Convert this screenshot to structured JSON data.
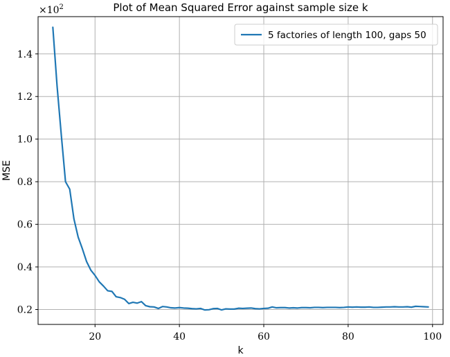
{
  "chart_data": {
    "type": "line",
    "title": "Plot of Mean Squared Error against sample size k",
    "xlabel": "k",
    "ylabel": "MSE",
    "y_offset_label": "×10",
    "y_offset_exponent": "2",
    "xlim": [
      6.5,
      102.5
    ],
    "ylim": [
      0.13,
      1.575
    ],
    "x_ticks": [
      20,
      40,
      60,
      80,
      100
    ],
    "x_tick_labels": [
      "20",
      "40",
      "60",
      "80",
      "100"
    ],
    "y_ticks": [
      0.2,
      0.4,
      0.6,
      0.8,
      1.0,
      1.2,
      1.4
    ],
    "y_tick_labels": [
      "0.2",
      "0.4",
      "0.6",
      "0.8",
      "1.0",
      "1.2",
      "1.4"
    ],
    "grid": true,
    "legend_position": "top-right",
    "series_color": "#1f77b4",
    "series": [
      {
        "name": "5 factories of length 100, gaps 50",
        "x": [
          10,
          11,
          12,
          13,
          14,
          15,
          16,
          17,
          18,
          19,
          20,
          21,
          22,
          23,
          24,
          25,
          26,
          27,
          28,
          29,
          30,
          31,
          32,
          33,
          34,
          35,
          36,
          37,
          38,
          39,
          40,
          41,
          42,
          43,
          44,
          45,
          46,
          47,
          48,
          49,
          50,
          51,
          52,
          53,
          54,
          55,
          56,
          57,
          58,
          59,
          60,
          61,
          62,
          63,
          64,
          65,
          66,
          67,
          68,
          69,
          70,
          71,
          72,
          73,
          74,
          75,
          76,
          77,
          78,
          79,
          80,
          81,
          82,
          83,
          84,
          85,
          86,
          87,
          88,
          89,
          90,
          91,
          92,
          93,
          94,
          95,
          96,
          97,
          98,
          99
        ],
        "values": [
          1.525,
          1.25,
          1.02,
          0.8,
          0.765,
          0.625,
          0.54,
          0.485,
          0.425,
          0.385,
          0.36,
          0.33,
          0.31,
          0.288,
          0.285,
          0.26,
          0.256,
          0.248,
          0.228,
          0.234,
          0.23,
          0.237,
          0.218,
          0.213,
          0.212,
          0.205,
          0.214,
          0.212,
          0.208,
          0.207,
          0.209,
          0.207,
          0.206,
          0.204,
          0.203,
          0.205,
          0.198,
          0.199,
          0.204,
          0.205,
          0.198,
          0.203,
          0.202,
          0.202,
          0.206,
          0.205,
          0.206,
          0.207,
          0.204,
          0.203,
          0.205,
          0.206,
          0.212,
          0.208,
          0.209,
          0.209,
          0.207,
          0.208,
          0.207,
          0.209,
          0.209,
          0.208,
          0.21,
          0.21,
          0.209,
          0.21,
          0.21,
          0.21,
          0.209,
          0.21,
          0.212,
          0.211,
          0.212,
          0.211,
          0.211,
          0.212,
          0.21,
          0.21,
          0.211,
          0.212,
          0.212,
          0.213,
          0.212,
          0.212,
          0.213,
          0.211,
          0.215,
          0.214,
          0.213,
          0.212
        ]
      }
    ]
  }
}
